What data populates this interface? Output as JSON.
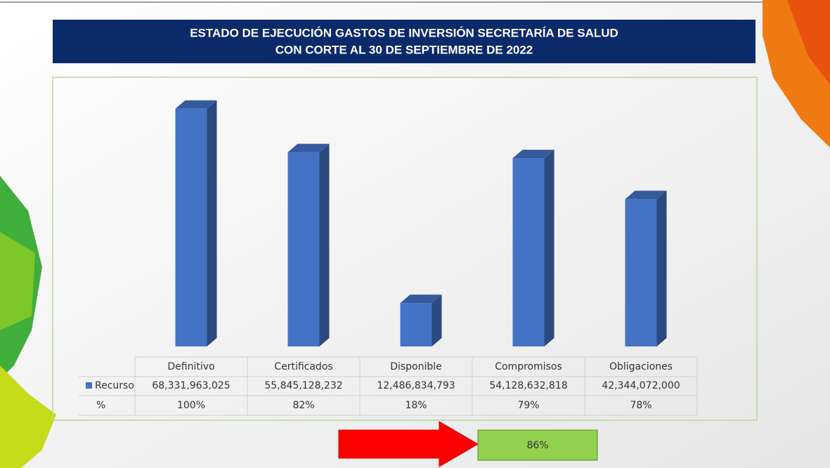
{
  "chart_data": {
    "type": "bar3d",
    "title": "ESTADO DE EJECUCIÓN GASTOS DE INVERSIÓN SECRETARÍA DE SALUD",
    "subtitle": "CON CORTE AL 30 DE SEPTIEMBRE DE 2022",
    "categories": [
      "Definitivo",
      "Certificados",
      "Disponible",
      "Compromisos",
      "Obligaciones"
    ],
    "series": [
      {
        "name": "Recurso",
        "color": "#4472c4",
        "values": [
          68331963025,
          55845128232,
          12486834793,
          54128632818,
          42344072000
        ],
        "value_labels": [
          "68,331,963,025",
          "55,845,128,232",
          "12,486,834,793",
          "54,128,632,818",
          "42,344,072,000"
        ]
      }
    ],
    "percent_row": {
      "name": "%",
      "values": [
        100,
        82,
        18,
        79,
        78
      ],
      "value_labels": [
        "100%",
        "82%",
        "18%",
        "79%",
        "78%"
      ]
    },
    "total_percent": {
      "value": 86,
      "label": "86%"
    },
    "ylim": [
      0,
      80000000000
    ]
  }
}
